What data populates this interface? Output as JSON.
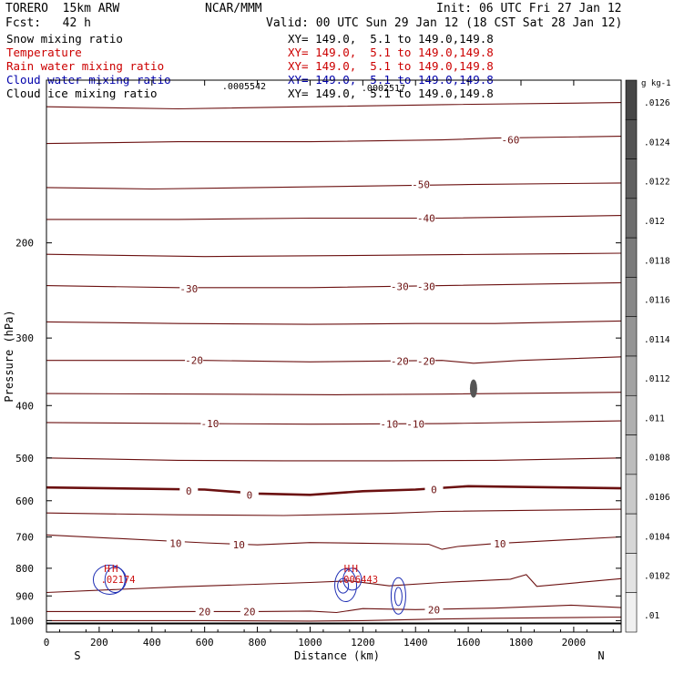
{
  "header": {
    "model": "TORERO  15km ARW",
    "institution": "NCAR/MMM",
    "init": "Init: 06 UTC Fri 27 Jan 12",
    "fcst": "Fcst:   42 h",
    "valid": "Valid: 00 UTC Sun 29 Jan 12 (18 CST Sat 28 Jan 12)"
  },
  "legend": [
    {
      "label": "Snow mixing ratio",
      "xy": "XY= 149.0,  5.1 to 149.0,149.8",
      "color": "#000000"
    },
    {
      "label": "Temperature",
      "xy": "XY= 149.0,  5.1 to 149.0,149.8",
      "color": "#cc0000"
    },
    {
      "label": "Rain water mixing ratio",
      "xy": "XY= 149.0,  5.1 to 149.0,149.8",
      "color": "#cc0000"
    },
    {
      "label": "Cloud water mixing ratio",
      "xy": "XY= 149.0,  5.1 to 149.0,149.8",
      "color": "#0000aa"
    },
    {
      "label": "Cloud ice mixing ratio",
      "xy": "XY= 149.0,  5.1 to 149.0,149.8",
      "color": "#000000"
    }
  ],
  "colors": {
    "temperature": "#6b1010",
    "cloud_water": "#1f2fb4",
    "rain": "#cc1111"
  },
  "chart_data": {
    "type": "contour",
    "xlabel": "Distance (km)",
    "ylabel": "Pressure (hPa)",
    "x_ticks": [
      0,
      200,
      400,
      600,
      800,
      1000,
      1200,
      1400,
      1600,
      1800,
      2000
    ],
    "y_ticks": [
      200,
      300,
      400,
      500,
      600,
      700,
      800,
      900,
      1000
    ],
    "xlim": [
      0,
      2180
    ],
    "ylim": [
      1050,
      100
    ],
    "y_scale": "log",
    "end_labels": {
      "left": "S",
      "right": "N"
    },
    "annotations": [
      ".0005542",
      ".0002517"
    ],
    "temperature_contours": [
      {
        "value": -70,
        "points": [
          [
            0,
            112
          ],
          [
            500,
            113
          ],
          [
            1000,
            112
          ],
          [
            1500,
            111
          ],
          [
            2180,
            110
          ]
        ]
      },
      {
        "value": -60,
        "points": [
          [
            0,
            131
          ],
          [
            500,
            130
          ],
          [
            1000,
            130
          ],
          [
            1500,
            129
          ],
          [
            1700,
            128
          ],
          [
            2180,
            127
          ]
        ]
      },
      {
        "value": -50,
        "points": [
          [
            0,
            158
          ],
          [
            400,
            159
          ],
          [
            800,
            158
          ],
          [
            1200,
            157
          ],
          [
            1600,
            156
          ],
          [
            2180,
            155
          ]
        ]
      },
      {
        "value": -40,
        "points": [
          [
            0,
            181
          ],
          [
            500,
            181
          ],
          [
            1000,
            180
          ],
          [
            1500,
            180
          ],
          [
            2180,
            178
          ]
        ]
      },
      {
        "value": -35,
        "points": [
          [
            0,
            210
          ],
          [
            600,
            212
          ],
          [
            1200,
            211
          ],
          [
            1700,
            210
          ],
          [
            2180,
            209
          ]
        ]
      },
      {
        "value": -30,
        "points": [
          [
            0,
            240
          ],
          [
            500,
            242
          ],
          [
            1000,
            242
          ],
          [
            1500,
            240
          ],
          [
            2180,
            237
          ]
        ]
      },
      {
        "value": -25,
        "points": [
          [
            0,
            280
          ],
          [
            500,
            282
          ],
          [
            1000,
            283
          ],
          [
            1400,
            282
          ],
          [
            1700,
            282
          ],
          [
            2180,
            279
          ]
        ]
      },
      {
        "value": -20,
        "points": [
          [
            0,
            330
          ],
          [
            600,
            330
          ],
          [
            1000,
            332
          ],
          [
            1500,
            330
          ],
          [
            1620,
            334
          ],
          [
            1800,
            330
          ],
          [
            2180,
            325
          ]
        ]
      },
      {
        "value": -15,
        "points": [
          [
            0,
            380
          ],
          [
            600,
            381
          ],
          [
            1100,
            382
          ],
          [
            1500,
            381
          ],
          [
            2180,
            378
          ]
        ]
      },
      {
        "value": -10,
        "points": [
          [
            0,
            430
          ],
          [
            600,
            432
          ],
          [
            1000,
            433
          ],
          [
            1500,
            432
          ],
          [
            2180,
            427
          ]
        ]
      },
      {
        "value": -5,
        "points": [
          [
            0,
            500
          ],
          [
            500,
            505
          ],
          [
            900,
            506
          ],
          [
            1300,
            506
          ],
          [
            1700,
            505
          ],
          [
            2180,
            500
          ]
        ]
      },
      {
        "value": 0,
        "points": [
          [
            0,
            567
          ],
          [
            600,
            572
          ],
          [
            800,
            582
          ],
          [
            1000,
            585
          ],
          [
            1200,
            576
          ],
          [
            1400,
            572
          ],
          [
            1600,
            564
          ],
          [
            2180,
            569
          ]
        ]
      },
      {
        "value": 5,
        "points": [
          [
            0,
            632
          ],
          [
            500,
            637
          ],
          [
            900,
            639
          ],
          [
            1300,
            633
          ],
          [
            1500,
            628
          ],
          [
            2180,
            622
          ]
        ]
      },
      {
        "value": 10,
        "points": [
          [
            0,
            694
          ],
          [
            600,
            718
          ],
          [
            800,
            724
          ],
          [
            1000,
            717
          ],
          [
            1200,
            719
          ],
          [
            1450,
            722
          ],
          [
            1500,
            738
          ],
          [
            1560,
            729
          ],
          [
            1700,
            720
          ],
          [
            2180,
            700
          ]
        ]
      },
      {
        "value": 15,
        "points": [
          [
            0,
            887
          ],
          [
            500,
            866
          ],
          [
            1000,
            850
          ],
          [
            1150,
            844
          ],
          [
            1300,
            862
          ],
          [
            1500,
            850
          ],
          [
            1760,
            838
          ],
          [
            1820,
            822
          ],
          [
            1860,
            864
          ],
          [
            2180,
            836
          ]
        ]
      },
      {
        "value": 20,
        "points": [
          [
            0,
            962
          ],
          [
            500,
            962
          ],
          [
            800,
            962
          ],
          [
            1000,
            960
          ],
          [
            1100,
            966
          ],
          [
            1200,
            950
          ],
          [
            1400,
            954
          ],
          [
            1700,
            948
          ],
          [
            1990,
            936
          ],
          [
            2180,
            946
          ]
        ]
      },
      {
        "value": 25,
        "points": [
          [
            0,
            1000
          ],
          [
            600,
            1000
          ],
          [
            1000,
            1002
          ],
          [
            1200,
            1000
          ],
          [
            1500,
            993
          ],
          [
            1700,
            990
          ],
          [
            2180,
            985
          ]
        ]
      }
    ],
    "temperature_labels": [
      {
        "text": "-60",
        "x": 1760,
        "p": 129
      },
      {
        "text": "-50",
        "x": 1420,
        "p": 156
      },
      {
        "text": "-40",
        "x": 1440,
        "p": 180
      },
      {
        "text": "-30",
        "x": 540,
        "p": 243
      },
      {
        "text": "-30",
        "x": 1340,
        "p": 241
      },
      {
        "text": "-30",
        "x": 1440,
        "p": 241
      },
      {
        "text": "-20",
        "x": 560,
        "p": 330
      },
      {
        "text": "-20",
        "x": 1340,
        "p": 331
      },
      {
        "text": "-20",
        "x": 1440,
        "p": 331
      },
      {
        "text": "-10",
        "x": 620,
        "p": 432
      },
      {
        "text": "-10",
        "x": 1300,
        "p": 433
      },
      {
        "text": "-10",
        "x": 1400,
        "p": 433
      },
      {
        "text": "0",
        "x": 540,
        "p": 575
      },
      {
        "text": "0",
        "x": 770,
        "p": 585
      },
      {
        "text": "0",
        "x": 1470,
        "p": 572
      },
      {
        "text": "10",
        "x": 490,
        "p": 719
      },
      {
        "text": "10",
        "x": 730,
        "p": 724
      },
      {
        "text": "10",
        "x": 1720,
        "p": 720
      },
      {
        "text": "20",
        "x": 600,
        "p": 962
      },
      {
        "text": "20",
        "x": 770,
        "p": 962
      },
      {
        "text": "20",
        "x": 1470,
        "p": 954
      }
    ],
    "rain_maxima": [
      {
        "label": "H",
        "value": ".02174",
        "x": 230,
        "p": 813
      },
      {
        "label": "H",
        "value": ".02174",
        "x": 260,
        "p": 813
      },
      {
        "label": "H",
        "value": ".006443",
        "x": 1140,
        "p": 813
      },
      {
        "label": "H",
        "value": ".006443",
        "x": 1170,
        "p": 813
      }
    ],
    "colorbar": {
      "unit": "g kg-1",
      "ticks": [
        ".0126",
        ".0124",
        ".0122",
        ".012",
        ".0118",
        ".0116",
        ".0114",
        ".0112",
        ".011",
        ".0108",
        ".0106",
        ".0104",
        ".0102",
        ".01"
      ]
    }
  }
}
